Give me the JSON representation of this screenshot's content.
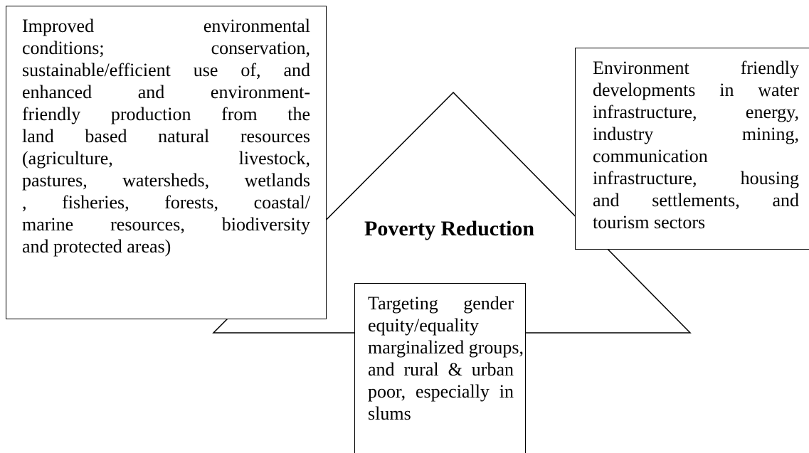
{
  "center_label": "Poverty Reduction",
  "boxes": [
    {
      "lines": [
        "Improved environmental",
        "conditions; conservation,",
        "sustainable/efficient use of, and",
        "enhanced and environment-",
        "friendly production from the",
        "land based natural resources",
        "(agriculture, livestock,",
        "pastures, watersheds, wetlands",
        ", fisheries, forests, coastal/",
        "marine resources, biodiversity",
        "and protected areas)"
      ]
    },
    {
      "lines": [
        "Environment friendly",
        "developments in water",
        "infrastructure, energy,",
        "industry mining,",
        "communication",
        "infrastructure, housing",
        "and settlements, and",
        "tourism sectors"
      ]
    },
    {
      "lines": [
        "Targeting gender",
        "equity/equality",
        "marginalized groups,",
        "and rural & urban",
        "poor, especially in",
        "slums"
      ]
    }
  ]
}
